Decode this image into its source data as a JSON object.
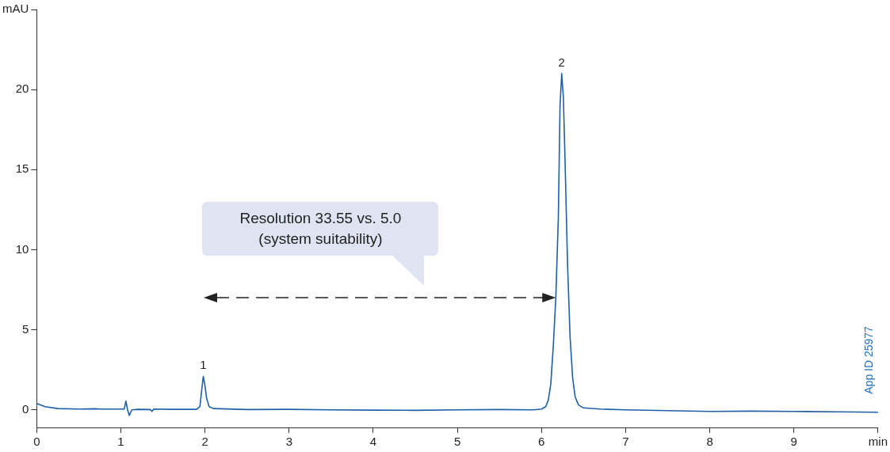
{
  "chart_data": {
    "type": "line",
    "x": [
      0,
      0.1,
      0.25,
      0.5,
      0.7,
      0.75,
      1.0,
      1.04,
      1.06,
      1.08,
      1.1,
      1.13,
      1.2,
      1.35,
      1.37,
      1.39,
      1.6,
      1.9,
      1.94,
      1.96,
      1.98,
      2.0,
      2.02,
      2.05,
      2.1,
      2.5,
      3,
      3.5,
      4,
      4.5,
      5,
      5.5,
      5.9,
      6.0,
      6.05,
      6.08,
      6.11,
      6.14,
      6.17,
      6.2,
      6.22,
      6.24,
      6.26,
      6.28,
      6.31,
      6.34,
      6.37,
      6.4,
      6.44,
      6.5,
      6.7,
      7,
      7.5,
      8,
      8.5,
      9,
      9.5,
      10
    ],
    "series": [
      {
        "color": "#1f5fa8",
        "values": [
          0.4,
          0.2,
          0.08,
          0.05,
          0.07,
          0.05,
          0.05,
          0.05,
          0.55,
          0.0,
          -0.35,
          0.0,
          0.03,
          0.02,
          -0.1,
          0.05,
          0.03,
          0.03,
          0.2,
          1.2,
          2.08,
          1.5,
          0.7,
          0.2,
          0.08,
          0.02,
          0.03,
          0.0,
          -0.02,
          -0.03,
          0.0,
          0.02,
          0.0,
          0.05,
          0.2,
          0.6,
          1.6,
          4,
          7,
          12,
          19,
          21.0,
          19.5,
          15.5,
          9,
          4.5,
          2,
          0.8,
          0.3,
          0.12,
          0.05,
          0.0,
          -0.05,
          -0.1,
          -0.08,
          -0.1,
          -0.12,
          -0.15
        ]
      }
    ],
    "xlim": [
      0,
      10
    ],
    "xticks": [
      0,
      1,
      2,
      3,
      4,
      5,
      6,
      7,
      8,
      9,
      {
        "value": 10,
        "label": "min"
      }
    ],
    "ylim": [
      -1.1,
      25
    ],
    "yticks": [
      0,
      5,
      10,
      15,
      20,
      {
        "value": 25,
        "label": "mAU"
      }
    ],
    "grid": false,
    "legend": false,
    "marker": "none",
    "line_style": "solid",
    "annotations": [
      "Resolution 33.55 vs. 5.0\n(system suitability)",
      {
        "text": "1",
        "x": 1.98,
        "y": 2.08
      },
      {
        "text": "2",
        "x": 6.24,
        "y": 21.0
      },
      "App ID 25977"
    ]
  }
}
